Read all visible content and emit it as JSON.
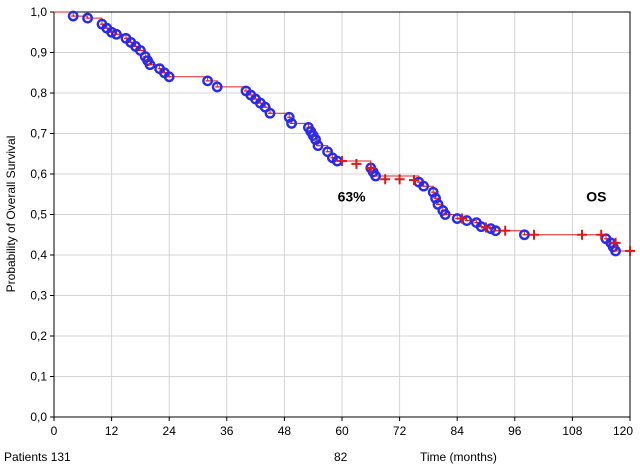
{
  "chart_data": {
    "type": "line",
    "xlabel": "Time (months)",
    "ylabel": "Probability of Overall Survival",
    "xlim": [
      0,
      120
    ],
    "ylim": [
      0,
      1
    ],
    "x_ticks": [
      "0",
      "12",
      "24",
      "36",
      "48",
      "60",
      "72",
      "84",
      "96",
      "108",
      "120"
    ],
    "y_ticks": [
      "0,0",
      "0,1",
      "0,2",
      "0,3",
      "0,4",
      "0,5",
      "0,6",
      "0,7",
      "0,8",
      "0,9",
      "1,0"
    ],
    "grid": true,
    "line_color": "#e02020",
    "event_color": "#2a2aee",
    "censor_color": "#e01818",
    "step_points": [
      [
        0,
        1.0
      ],
      [
        4,
        0.99
      ],
      [
        7,
        0.985
      ],
      [
        10,
        0.97
      ],
      [
        11,
        0.96
      ],
      [
        12,
        0.95
      ],
      [
        13,
        0.945
      ],
      [
        15,
        0.935
      ],
      [
        16,
        0.925
      ],
      [
        17,
        0.915
      ],
      [
        18,
        0.905
      ],
      [
        19,
        0.89
      ],
      [
        19.5,
        0.88
      ],
      [
        20,
        0.87
      ],
      [
        22,
        0.86
      ],
      [
        23,
        0.85
      ],
      [
        24,
        0.84
      ],
      [
        32,
        0.83
      ],
      [
        34,
        0.815
      ],
      [
        40,
        0.805
      ],
      [
        41,
        0.795
      ],
      [
        42,
        0.785
      ],
      [
        43,
        0.775
      ],
      [
        44,
        0.765
      ],
      [
        45,
        0.75
      ],
      [
        49,
        0.74
      ],
      [
        49.5,
        0.725
      ],
      [
        53,
        0.715
      ],
      [
        53.5,
        0.705
      ],
      [
        54,
        0.695
      ],
      [
        54.5,
        0.685
      ],
      [
        55,
        0.67
      ],
      [
        57,
        0.655
      ],
      [
        58,
        0.64
      ],
      [
        59,
        0.632
      ],
      [
        66,
        0.615
      ],
      [
        66.5,
        0.605
      ],
      [
        67,
        0.595
      ],
      [
        76,
        0.58
      ],
      [
        77,
        0.57
      ],
      [
        79,
        0.555
      ],
      [
        79.5,
        0.54
      ],
      [
        80,
        0.525
      ],
      [
        81,
        0.51
      ],
      [
        81.5,
        0.5
      ],
      [
        84,
        0.49
      ],
      [
        86,
        0.485
      ],
      [
        88,
        0.48
      ],
      [
        89,
        0.47
      ],
      [
        91,
        0.465
      ],
      [
        92,
        0.46
      ],
      [
        98,
        0.45
      ],
      [
        115,
        0.44
      ],
      [
        116,
        0.43
      ],
      [
        116.5,
        0.42
      ],
      [
        117,
        0.41
      ],
      [
        120,
        0.41
      ]
    ],
    "censored": [
      [
        60,
        0.632
      ],
      [
        63,
        0.625
      ],
      [
        66,
        0.615
      ],
      [
        69,
        0.587
      ],
      [
        72,
        0.587
      ],
      [
        75,
        0.585
      ],
      [
        85,
        0.49
      ],
      [
        90,
        0.468
      ],
      [
        94,
        0.46
      ],
      [
        100,
        0.45
      ],
      [
        110,
        0.45
      ],
      [
        114,
        0.45
      ],
      [
        117,
        0.43
      ],
      [
        120,
        0.41
      ]
    ],
    "annotations": [
      {
        "text": "63%",
        "x": 62,
        "y": 0.545
      },
      {
        "text": "OS",
        "x": 113,
        "y": 0.545
      }
    ],
    "risk_table": {
      "label": "Patients 131",
      "value_at_60": "82"
    }
  }
}
